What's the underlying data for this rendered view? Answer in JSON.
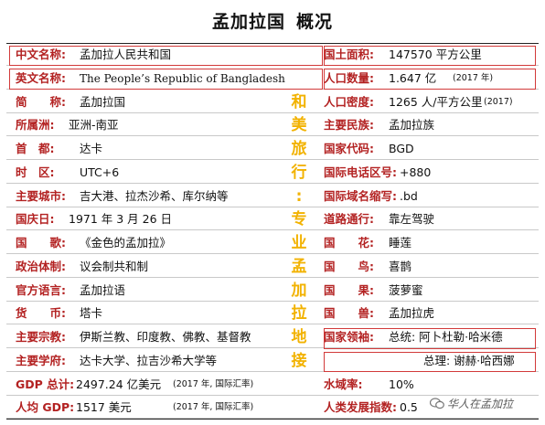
{
  "title": {
    "main": "孟加拉国",
    "sub": "概况"
  },
  "rows": [
    {
      "l_label": "中文名称:",
      "l_value": "孟加拉人民共和国",
      "mid": "",
      "r_label": "国土面积:",
      "r_value": "147570 平方公里",
      "r_small": ""
    },
    {
      "l_label": "英文名称:",
      "l_value": "The People’s Republic of Bangladesh",
      "mid": "",
      "r_label": "人口数量:",
      "r_value": "1.647 亿",
      "r_small": "(2017 年)"
    },
    {
      "l_label": "简　　称:",
      "l_value": "孟加拉国",
      "mid": "和",
      "r_label": "人口密度:",
      "r_value": "1265 人/平方公里",
      "r_small": "(2017)"
    },
    {
      "l_label": "所属洲:",
      "l_value": "亚洲-南亚",
      "mid": "美",
      "r_label": "主要民族:",
      "r_value": "孟加拉族",
      "r_small": ""
    },
    {
      "l_label": "首　都:",
      "l_value": "达卡",
      "mid": "旅",
      "r_label": "国家代码:",
      "r_value": "BGD",
      "r_small": ""
    },
    {
      "l_label": "时　区:",
      "l_value": "UTC+6",
      "mid": "行",
      "r_label": "国际电话区号:",
      "r_value": "+880",
      "r_small": ""
    },
    {
      "l_label": "主要城市:",
      "l_value": "吉大港、拉杰沙希、库尔纳等",
      "mid": ":",
      "r_label": "国际域名缩写:",
      "r_value": ".bd",
      "r_small": ""
    },
    {
      "l_label": "国庆日:",
      "l_value": "1971 年 3 月 26 日",
      "mid": "专",
      "r_label": "道路通行:",
      "r_value": "靠左驾驶",
      "r_small": ""
    },
    {
      "l_label": "国　　歌:",
      "l_value": "《金色的孟加拉》",
      "mid": "业",
      "r_label": "国　　花:",
      "r_value": "睡莲",
      "r_small": ""
    },
    {
      "l_label": "政治体制:",
      "l_value": "议会制共和制",
      "mid": "孟",
      "r_label": "国　　鸟:",
      "r_value": "喜鹊",
      "r_small": ""
    },
    {
      "l_label": "官方语言:",
      "l_value": "孟加拉语",
      "mid": "加",
      "r_label": "国　　果:",
      "r_value": "菠萝蜜",
      "r_small": ""
    },
    {
      "l_label": "货　　币:",
      "l_value": "塔卡",
      "mid": "拉",
      "r_label": "国　　兽:",
      "r_value": "孟加拉虎",
      "r_small": ""
    },
    {
      "l_label": "主要宗教:",
      "l_value": "伊斯兰教、印度教、佛教、基督教",
      "mid": "地",
      "r_label": "国家领袖:",
      "r_value": "总统: 阿卜杜勒·哈米德",
      "r_small": ""
    },
    {
      "l_label": "主要学府:",
      "l_value": "达卡大学、拉吉沙希大学等",
      "mid": "接",
      "r_label": "",
      "r_value": "总理: 谢赫·哈西娜",
      "r_small": ""
    },
    {
      "l_label": "GDP 总计:",
      "l_value": "2497.24 亿美元",
      "l_small": "(2017 年, 国际汇率)",
      "mid": "",
      "r_label": "水域率:",
      "r_value": "10%",
      "r_small": ""
    },
    {
      "l_label": "人均 GDP:",
      "l_value": "1517 美元",
      "l_small": "(2017 年, 国际汇率)",
      "mid": "",
      "r_label": "人类发展指数:",
      "r_value": "0.5",
      "r_small": ""
    }
  ],
  "watermark": {
    "text": "华人在孟加拉"
  },
  "colors": {
    "label": "#b32222",
    "accent": "#f2b200",
    "box": "#d23a3a"
  }
}
